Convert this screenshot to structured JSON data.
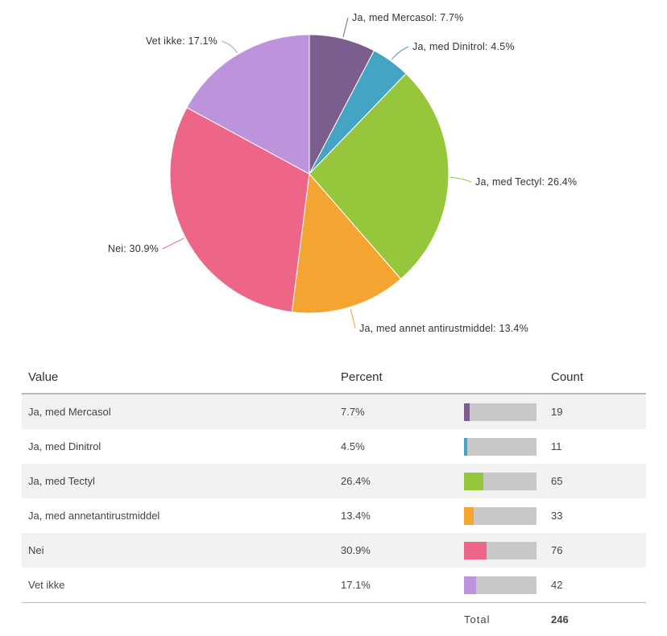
{
  "chart_data": {
    "type": "pie",
    "title": "",
    "slices": [
      {
        "label": "Ja, med Mercasol",
        "percent": 7.7,
        "percent_text": "7.7%",
        "count": 19,
        "color": "#7b5e8e",
        "chart_label": "Ja, med Mercasol: 7.7%"
      },
      {
        "label": "Ja, med Dinitrol",
        "percent": 4.5,
        "percent_text": "4.5%",
        "count": 11,
        "color": "#45a3c4",
        "chart_label": "Ja, med Dinitrol: 4.5%"
      },
      {
        "label": "Ja, med Tectyl",
        "percent": 26.4,
        "percent_text": "26.4%",
        "count": 65,
        "color": "#96c63c",
        "chart_label": "Ja, med Tectyl: 26.4%"
      },
      {
        "label": "Ja, med annetantirustmiddel",
        "percent": 13.4,
        "percent_text": "13.4%",
        "count": 33,
        "color": "#f3a431",
        "chart_label": "Ja, med annet antirustmiddel: 13.4%"
      },
      {
        "label": "Nei",
        "percent": 30.9,
        "percent_text": "30.9%",
        "count": 76,
        "color": "#ed6687",
        "chart_label": "Nei: 30.9%"
      },
      {
        "label": "Vet ikke",
        "percent": 17.1,
        "percent_text": "17.1%",
        "count": 42,
        "color": "#bd93dc",
        "chart_label": "Vet ikke: 17.1%"
      }
    ]
  },
  "table": {
    "headers": {
      "value": "Value",
      "percent": "Percent",
      "count": "Count"
    },
    "total_label": "Total",
    "total_count": "246",
    "bar_track_color": "#c8c8c8"
  }
}
